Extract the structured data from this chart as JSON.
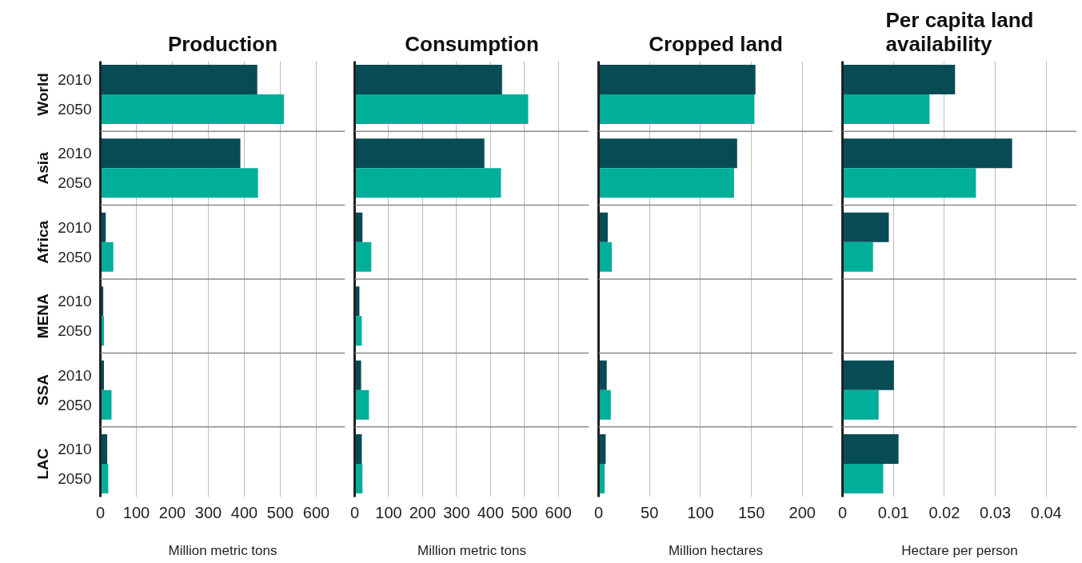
{
  "chart_data": [
    {
      "type": "bar",
      "orientation": "horizontal",
      "title": "Production",
      "xlabel": "Million metric tons",
      "categories": [
        "World",
        "Asia",
        "Africa",
        "MENA",
        "SSA",
        "LAC"
      ],
      "xlim": [
        0,
        680
      ],
      "xticks": [
        0,
        100,
        200,
        300,
        400,
        500,
        600
      ],
      "grid": "x",
      "series": [
        {
          "name": "2010",
          "color": "#074b55",
          "values": [
            436,
            389,
            15,
            8,
            10,
            19
          ]
        },
        {
          "name": "2050",
          "color": "#00ae9a",
          "values": [
            510,
            438,
            36,
            10,
            31,
            22
          ]
        }
      ]
    },
    {
      "type": "bar",
      "orientation": "horizontal",
      "title": "Consumption",
      "xlabel": "Million metric tons",
      "categories": [
        null,
        null,
        null,
        null,
        null,
        null
      ],
      "tick_labels": "x",
      "xlim": [
        0,
        690
      ],
      "xticks": [
        0,
        100,
        200,
        300,
        400,
        500,
        600
      ],
      "grid": "x",
      "series": [
        {
          "color": "#074b55",
          "values": [
            434,
            382,
            23,
            14,
            19,
            21
          ]
        },
        {
          "color": "#00ae9a",
          "values": [
            511,
            431,
            49,
            21,
            42,
            23
          ]
        }
      ]
    },
    {
      "type": "bar",
      "orientation": "horizontal",
      "title": "Cropped land",
      "xlabel": "Million hectares",
      "categories": [
        null,
        null,
        null,
        null,
        null,
        null
      ],
      "tick_labels": "x",
      "xlim": [
        0,
        230
      ],
      "xticks": [
        0,
        50,
        100,
        150,
        200
      ],
      "grid": "x",
      "series": [
        {
          "color": "#074b55",
          "values": [
            154,
            136,
            9,
            null,
            8,
            7
          ]
        },
        {
          "color": "#00ae9a",
          "values": [
            153,
            133,
            13,
            null,
            12,
            6
          ]
        }
      ]
    },
    {
      "type": "bar",
      "orientation": "horizontal",
      "title": "Per capita land\navailability",
      "xlabel": "Hectare per person",
      "categories": [
        null,
        null,
        null,
        null,
        null,
        null
      ],
      "tick_labels": "x",
      "xlim": [
        0,
        0.046
      ],
      "xticks": [
        0,
        0.01,
        0.02,
        0.03,
        0.04
      ],
      "grid": "x",
      "series": [
        {
          "color": "#074b55",
          "values": [
            0.0221,
            0.0333,
            0.0091,
            null,
            0.0101,
            0.011
          ]
        },
        {
          "color": "#00ae9a",
          "values": [
            0.0171,
            0.0262,
            0.006,
            null,
            0.0071,
            0.008
          ]
        }
      ]
    }
  ]
}
